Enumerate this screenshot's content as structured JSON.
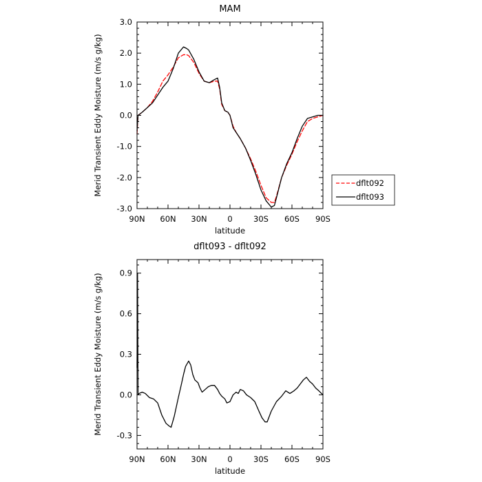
{
  "chart_data": [
    {
      "type": "line",
      "title": "MAM",
      "xlabel": "latitude",
      "ylabel": "Merid Transient Eddy Moisture (m/s g/kg)",
      "xlim": [
        90,
        -90
      ],
      "ylim": [
        -3.0,
        3.0
      ],
      "x_ticks": [
        90,
        60,
        30,
        0,
        -30,
        -60,
        -90
      ],
      "x_tick_labels": [
        "90N",
        "60N",
        "30N",
        "0",
        "30S",
        "60S",
        "90S"
      ],
      "y_ticks": [
        -3.0,
        -2.0,
        -1.0,
        0.0,
        1.0,
        2.0,
        3.0
      ],
      "y_tick_labels": [
        "-3.0",
        "-2.0",
        "-1.0",
        "0.0",
        "1.0",
        "2.0",
        "3.0"
      ],
      "legend_position": "outside-right",
      "series": [
        {
          "name": "dflt092",
          "color": "#ff0000",
          "dash": "dashed",
          "x": [
            90,
            89,
            85,
            80,
            75,
            70,
            65,
            60,
            55,
            50,
            45,
            42,
            40,
            35,
            30,
            25,
            20,
            15,
            12,
            10,
            8,
            5,
            2,
            0,
            -3,
            -6,
            -10,
            -15,
            -20,
            -25,
            -30,
            -35,
            -40,
            -43,
            -45,
            -50,
            -55,
            -60,
            -65,
            -70,
            -75,
            -80,
            -85,
            -90
          ],
          "y": [
            -0.6,
            0.0,
            0.1,
            0.25,
            0.45,
            0.75,
            1.1,
            1.3,
            1.55,
            1.85,
            1.95,
            1.95,
            1.92,
            1.7,
            1.35,
            1.1,
            1.05,
            1.1,
            1.1,
            0.85,
            0.35,
            0.15,
            0.1,
            0.0,
            -0.35,
            -0.55,
            -0.75,
            -1.05,
            -1.4,
            -1.8,
            -2.25,
            -2.65,
            -2.8,
            -2.8,
            -2.6,
            -2.0,
            -1.6,
            -1.25,
            -0.85,
            -0.5,
            -0.2,
            -0.1,
            -0.05,
            0.0
          ]
        },
        {
          "name": "dflt093",
          "color": "#000000",
          "dash": "solid",
          "x": [
            90,
            89,
            85,
            80,
            75,
            70,
            65,
            60,
            55,
            50,
            45,
            42,
            40,
            35,
            30,
            25,
            20,
            15,
            12,
            10,
            8,
            5,
            2,
            0,
            -3,
            -6,
            -10,
            -15,
            -20,
            -25,
            -30,
            -35,
            -40,
            -43,
            -45,
            -50,
            -55,
            -60,
            -65,
            -70,
            -75,
            -80,
            -85,
            -90
          ],
          "y": [
            -0.5,
            0.0,
            0.1,
            0.25,
            0.4,
            0.65,
            0.9,
            1.1,
            1.5,
            2.0,
            2.2,
            2.15,
            2.1,
            1.8,
            1.4,
            1.1,
            1.05,
            1.15,
            1.2,
            0.9,
            0.4,
            0.15,
            0.1,
            0.0,
            -0.4,
            -0.55,
            -0.75,
            -1.05,
            -1.45,
            -1.9,
            -2.4,
            -2.75,
            -2.95,
            -2.9,
            -2.65,
            -2.0,
            -1.55,
            -1.2,
            -0.75,
            -0.35,
            -0.1,
            -0.05,
            0.0,
            0.0
          ]
        }
      ]
    },
    {
      "type": "line",
      "title": "dflt093 - dflt092",
      "xlabel": "latitude",
      "ylabel": "Merid Transient Eddy Moisture (m/s g/kg)",
      "xlim": [
        90,
        -90
      ],
      "ylim": [
        -0.4,
        1.0
      ],
      "x_ticks": [
        90,
        60,
        30,
        0,
        -30,
        -60,
        -90
      ],
      "x_tick_labels": [
        "90N",
        "60N",
        "30N",
        "0",
        "30S",
        "60S",
        "90S"
      ],
      "y_ticks": [
        -0.3,
        0.0,
        0.3,
        0.6,
        0.9
      ],
      "y_tick_labels": [
        "-0.3",
        "0.0",
        "0.3",
        "0.6",
        "0.9"
      ],
      "series": [
        {
          "name": "",
          "color": "#000000",
          "dash": "solid",
          "x": [
            90,
            89.5,
            89,
            88,
            85,
            82,
            78,
            74,
            70,
            66,
            62,
            59,
            57,
            54,
            50,
            47,
            45,
            43,
            40,
            38,
            36,
            34,
            31,
            29,
            27,
            24,
            21,
            18,
            15,
            12,
            10,
            8,
            5,
            3,
            0,
            -3,
            -6,
            -8,
            -10,
            -13,
            -16,
            -20,
            -24,
            -28,
            -31,
            -34,
            -36,
            -40,
            -45,
            -50,
            -54,
            -58,
            -62,
            -65,
            -68,
            -71,
            -74,
            -77,
            -80,
            -83,
            -86,
            -90
          ],
          "y": [
            0.2,
            0.9,
            0.0,
            0.01,
            0.02,
            0.01,
            -0.02,
            -0.03,
            -0.06,
            -0.15,
            -0.21,
            -0.23,
            -0.24,
            -0.16,
            -0.02,
            0.08,
            0.15,
            0.21,
            0.25,
            0.22,
            0.15,
            0.11,
            0.09,
            0.05,
            0.02,
            0.04,
            0.06,
            0.07,
            0.07,
            0.04,
            0.01,
            -0.01,
            -0.03,
            -0.06,
            -0.05,
            0.0,
            0.02,
            0.01,
            0.04,
            0.03,
            0.0,
            -0.02,
            -0.05,
            -0.12,
            -0.17,
            -0.2,
            -0.2,
            -0.12,
            -0.05,
            -0.01,
            0.03,
            0.01,
            0.03,
            0.05,
            0.08,
            0.11,
            0.13,
            0.1,
            0.08,
            0.05,
            0.03,
            0.0
          ]
        }
      ]
    }
  ]
}
